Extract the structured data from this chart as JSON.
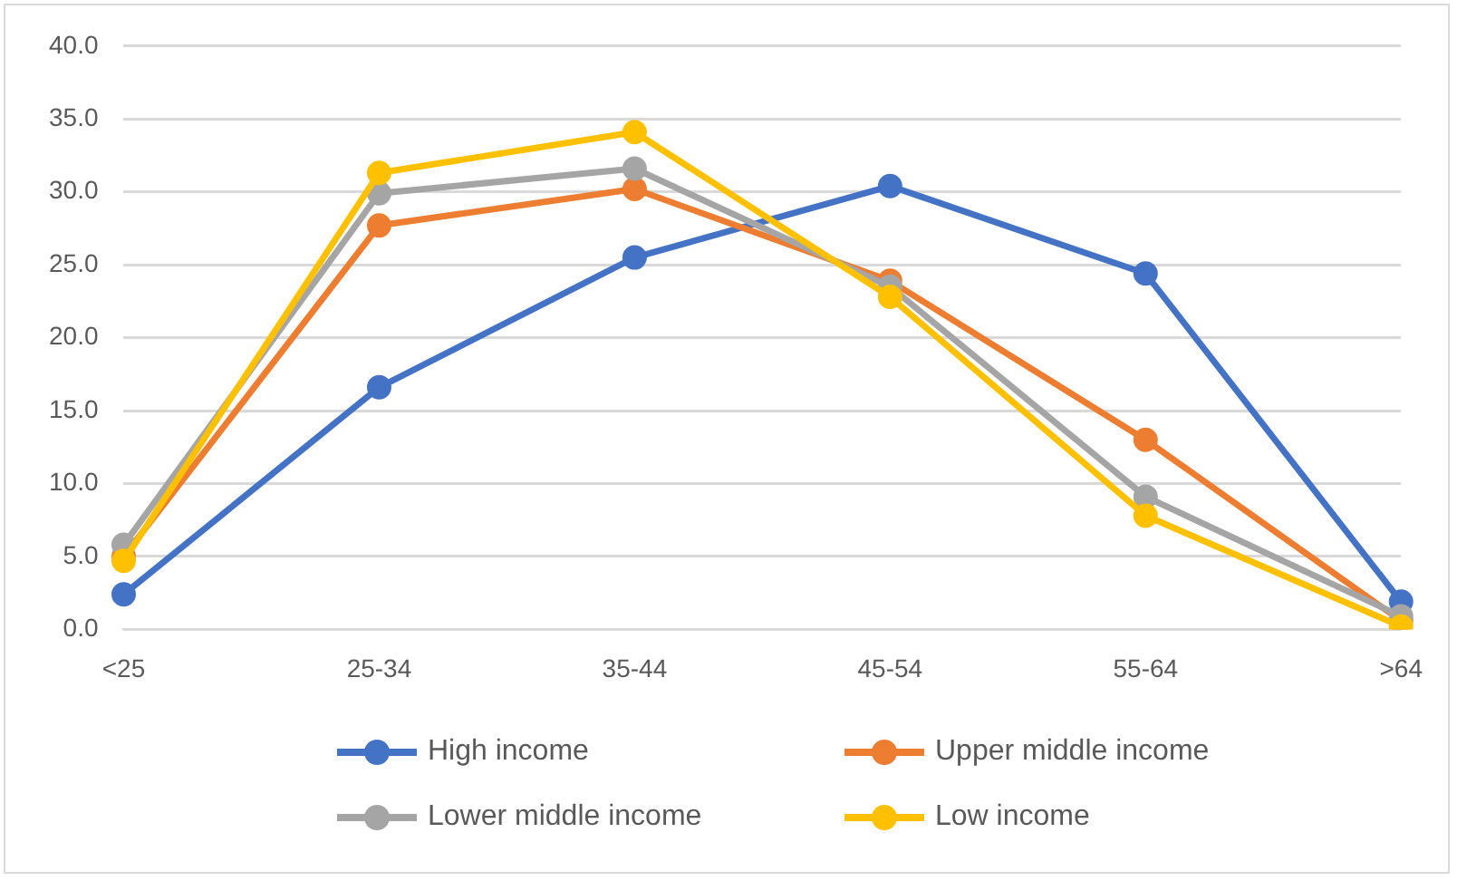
{
  "chart_data": {
    "type": "line",
    "categories": [
      "<25",
      "25-34",
      "35-44",
      "45-54",
      "55-64",
      ">64"
    ],
    "series": [
      {
        "name": "High income",
        "color": "#4472c4",
        "values": [
          2.4,
          16.6,
          25.5,
          30.4,
          24.4,
          1.9
        ]
      },
      {
        "name": "Upper middle income",
        "color": "#ed7d31",
        "values": [
          5.0,
          27.7,
          30.2,
          23.9,
          13.0,
          0.6
        ]
      },
      {
        "name": "Lower middle income",
        "color": "#a5a5a5",
        "values": [
          5.8,
          29.9,
          31.6,
          23.5,
          9.1,
          0.9
        ]
      },
      {
        "name": "Low income",
        "color": "#ffc000",
        "values": [
          4.7,
          31.3,
          34.1,
          22.8,
          7.8,
          0.2
        ]
      }
    ],
    "ylim": [
      0,
      40
    ],
    "yticks": [
      {
        "value": 0,
        "label": "0.0"
      },
      {
        "value": 5,
        "label": "5.0"
      },
      {
        "value": 10,
        "label": "10.0"
      },
      {
        "value": 15,
        "label": "15.0"
      },
      {
        "value": 20,
        "label": "20.0"
      },
      {
        "value": 25,
        "label": "25.0"
      },
      {
        "value": 30,
        "label": "30.0"
      },
      {
        "value": 35,
        "label": "35.0"
      },
      {
        "value": 40,
        "label": "40.0"
      }
    ],
    "grid": "y",
    "legend": "bottom",
    "marker": "circle",
    "line_style": "solid"
  }
}
